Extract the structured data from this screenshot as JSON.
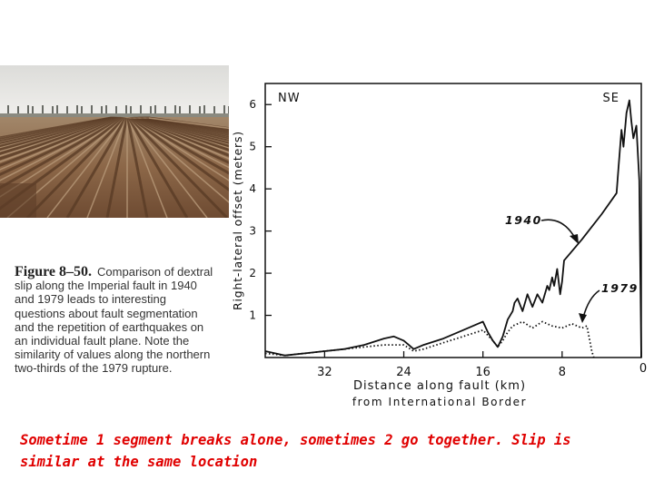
{
  "caption": {
    "figure_label": "Figure 8–50.",
    "text": "Comparison of dextral slip along the Imperial fault in 1940 and 1979 leads to interesting questions about fault segmentation and the repetition of earthquakes on an individual fault plane. Note the similarity of values along the northern two-thirds of the 1979 rupture."
  },
  "bottom_note": "Sometime 1 segment breaks alone, sometimes 2 go together.  Slip is similar at the same location",
  "photo": {
    "subject": "plowed-field-furrows",
    "sky_color": "#e8e8e6",
    "soil_color": "#8a6444"
  },
  "chart_data": {
    "type": "line",
    "xlabel": "Distance along fault (km)",
    "xlabel_sub": "from International Border",
    "ylabel": "Right-lateral offset (meters)",
    "xlim": [
      38,
      0
    ],
    "ylim": [
      0,
      6.5
    ],
    "x_ticks": [
      32,
      24,
      16,
      8,
      0
    ],
    "y_ticks": [
      1,
      2,
      3,
      4,
      5,
      6
    ],
    "corner_labels": {
      "left": "NW",
      "right": "SE"
    },
    "series": [
      {
        "name": "1940",
        "style": "solid",
        "points": [
          [
            38,
            0.15
          ],
          [
            36,
            0.05
          ],
          [
            34,
            0.1
          ],
          [
            32,
            0.15
          ],
          [
            30,
            0.2
          ],
          [
            28,
            0.3
          ],
          [
            26,
            0.45
          ],
          [
            25,
            0.5
          ],
          [
            24,
            0.4
          ],
          [
            23.5,
            0.3
          ],
          [
            23,
            0.2
          ],
          [
            22,
            0.3
          ],
          [
            20,
            0.45
          ],
          [
            18,
            0.65
          ],
          [
            16.5,
            0.8
          ],
          [
            16,
            0.85
          ],
          [
            15.5,
            0.6
          ],
          [
            15,
            0.4
          ],
          [
            14.5,
            0.25
          ],
          [
            14,
            0.5
          ],
          [
            13.5,
            0.9
          ],
          [
            13,
            1.1
          ],
          [
            12.8,
            1.3
          ],
          [
            12.5,
            1.4
          ],
          [
            12,
            1.1
          ],
          [
            11.5,
            1.5
          ],
          [
            11,
            1.2
          ],
          [
            10.5,
            1.5
          ],
          [
            10,
            1.3
          ],
          [
            9.5,
            1.7
          ],
          [
            9.3,
            1.6
          ],
          [
            9,
            1.9
          ],
          [
            8.8,
            1.7
          ],
          [
            8.5,
            2.1
          ],
          [
            8.2,
            1.5
          ],
          [
            8,
            1.8
          ],
          [
            7.8,
            2.3
          ],
          [
            6,
            2.8
          ],
          [
            4,
            3.4
          ],
          [
            2.5,
            3.9
          ],
          [
            2.3,
            4.5
          ],
          [
            2,
            5.4
          ],
          [
            1.8,
            5.0
          ],
          [
            1.5,
            5.8
          ],
          [
            1.2,
            6.1
          ],
          [
            1.0,
            5.6
          ],
          [
            0.8,
            5.2
          ],
          [
            0.5,
            5.5
          ],
          [
            0.2,
            4.2
          ],
          [
            0,
            0
          ]
        ]
      },
      {
        "name": "1979",
        "style": "dotted",
        "points": [
          [
            38,
            0.1
          ],
          [
            36,
            0.05
          ],
          [
            34,
            0.1
          ],
          [
            32,
            0.15
          ],
          [
            30,
            0.2
          ],
          [
            28,
            0.25
          ],
          [
            26,
            0.3
          ],
          [
            25,
            0.3
          ],
          [
            24,
            0.3
          ],
          [
            23,
            0.15
          ],
          [
            22,
            0.2
          ],
          [
            20,
            0.35
          ],
          [
            18,
            0.5
          ],
          [
            16,
            0.65
          ],
          [
            15,
            0.4
          ],
          [
            14.5,
            0.25
          ],
          [
            14,
            0.4
          ],
          [
            13.5,
            0.6
          ],
          [
            13,
            0.75
          ],
          [
            12,
            0.85
          ],
          [
            11,
            0.7
          ],
          [
            10,
            0.85
          ],
          [
            9,
            0.75
          ],
          [
            8,
            0.7
          ],
          [
            7,
            0.8
          ],
          [
            6,
            0.7
          ],
          [
            5.5,
            0.75
          ],
          [
            5.2,
            0.4
          ],
          [
            5,
            0.15
          ],
          [
            4.8,
            0
          ]
        ]
      }
    ],
    "annotations": [
      {
        "text": "1940",
        "series": "1940"
      },
      {
        "text": "1979",
        "series": "1979"
      }
    ]
  }
}
